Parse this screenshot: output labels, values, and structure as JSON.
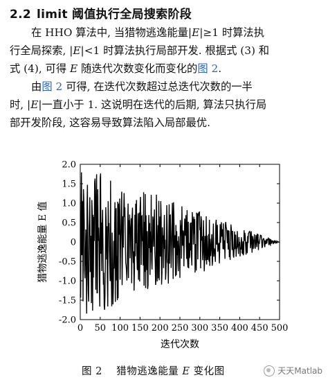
{
  "section": {
    "number": "2.2",
    "title": "limit 阈值执行全局搜索阶段"
  },
  "paragraph1": {
    "line1_a": "在 HHO 算法中, 当猎物逃逸能量|",
    "line1_var": "E",
    "line1_b": "|≥1 时算法执",
    "line2_a": "行全局探索, |",
    "line2_var": "E",
    "line2_b": "|<1 时算法执行局部开发. 根据式 (3) 和",
    "line3_a": "式 (4), 可得 ",
    "line3_var": "E",
    "line3_b": " 随迭代次数变化而变化的",
    "line3_link": "图 2",
    "line3_c": "."
  },
  "paragraph2": {
    "line1_a": "由",
    "line1_link": "图 2",
    "line1_b": " 可得, 在迭代次数超过总迭代次数的一半",
    "line2_a": "时, |",
    "line2_var": "E",
    "line2_b": "|一直小于 1. 这说明在迭代的后期, 算法只执行局",
    "line3": "部开发阶段, 这容易导致算法陷入局部最优."
  },
  "chart_data": {
    "type": "line",
    "xlabel": "迭代次数",
    "ylabel": "猎物逃逸能量 E 值",
    "xlim": [
      0,
      500
    ],
    "ylim": [
      -2.0,
      2.0
    ],
    "xticks": [
      "0",
      "50",
      "100",
      "150",
      "200",
      "250",
      "300",
      "350",
      "400",
      "450",
      "500"
    ],
    "yticks": [
      "2.0",
      "1.5",
      "1.0",
      "0.5",
      "0",
      "-0.5",
      "-1.0",
      "-1.5",
      "-2.0"
    ],
    "grid": false,
    "series": [
      {
        "envelope": "linear decay from ±2.0 at x=0 to 0 at x=500",
        "x": [
          0,
          500
        ],
        "y_amplitude": [
          2.0,
          0.0
        ]
      }
    ],
    "line_color": "#000000"
  },
  "caption": {
    "label": "图 2",
    "text": "猎物逃逸能量 ",
    "var": "E",
    "suffix": " 变化图"
  },
  "watermark": {
    "text": "天天Matlab",
    "icon": "wechat-icon"
  }
}
